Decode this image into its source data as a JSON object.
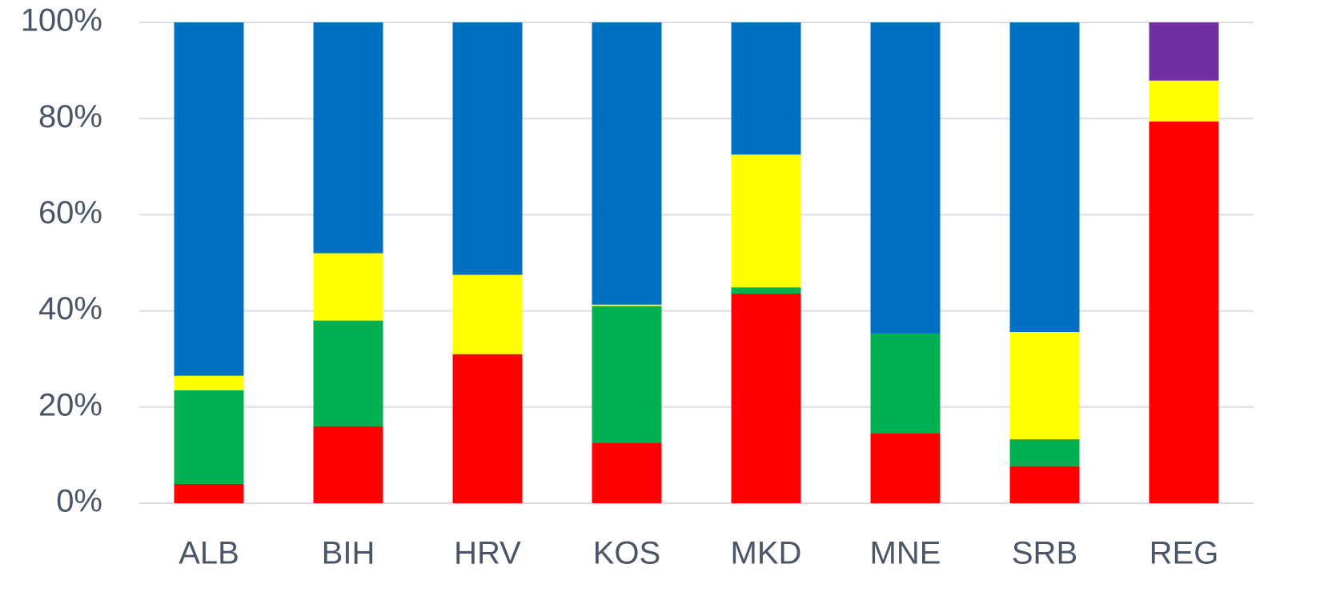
{
  "chart_data": {
    "type": "stacked_bar",
    "categories": [
      "ALB",
      "BIH",
      "HRV",
      "KOS",
      "MKD",
      "MNE",
      "SRB",
      "REG"
    ],
    "series": [
      {
        "color": "#ff0000",
        "values": [
          4,
          16,
          31,
          12.6,
          43.6,
          14.6,
          7.7,
          79.4
        ]
      },
      {
        "color": "#00b050",
        "values": [
          19.5,
          22,
          0,
          28.4,
          1.3,
          20.7,
          5.6,
          0
        ]
      },
      {
        "color": "#ffff00",
        "values": [
          3,
          14,
          16.5,
          0.3,
          27.6,
          0,
          22.3,
          8.5
        ]
      },
      {
        "color": "#0070c0",
        "values": [
          73.5,
          48,
          52.5,
          58.7,
          27.5,
          64.7,
          64.4,
          0
        ]
      },
      {
        "color": "#7030a0",
        "values": [
          0,
          0,
          0,
          0,
          0,
          0,
          0,
          12.1
        ]
      }
    ],
    "ylim": [
      0,
      100
    ],
    "yticks": [
      {
        "value": 0,
        "label": "0%"
      },
      {
        "value": 20,
        "label": "20%"
      },
      {
        "value": 40,
        "label": "40%"
      },
      {
        "value": 60,
        "label": "60%"
      },
      {
        "value": 80,
        "label": "80%"
      },
      {
        "value": 100,
        "label": "100%"
      }
    ],
    "grid": true
  }
}
